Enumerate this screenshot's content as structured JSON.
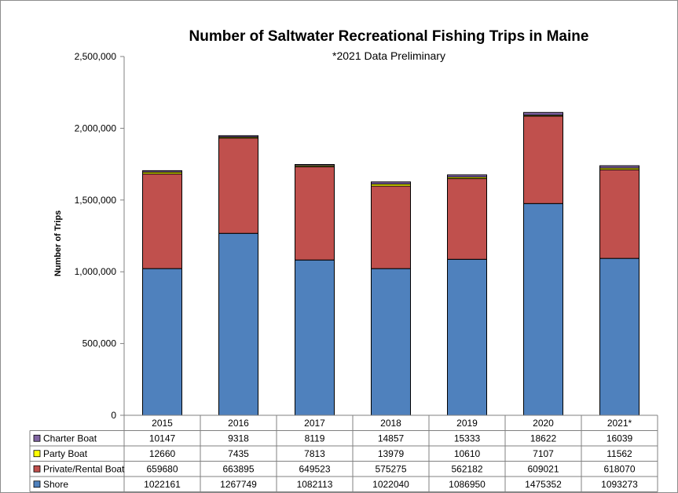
{
  "chart_data": {
    "type": "bar",
    "stacked": true,
    "title": "Number of Saltwater Recreational Fishing Trips in Maine",
    "subtitle": "*2021 Data Preliminary",
    "ylabel": "Number of Trips",
    "xlabel": "",
    "ylim": [
      0,
      2500000
    ],
    "yticks": [
      "0",
      "500,000",
      "1,000,000",
      "1,500,000",
      "2,000,000",
      "2,500,000"
    ],
    "ytick_values": [
      0,
      500000,
      1000000,
      1500000,
      2000000,
      2500000
    ],
    "categories": [
      "2015",
      "2016",
      "2017",
      "2018",
      "2019",
      "2020",
      "2021*"
    ],
    "grid": false,
    "legend": "data table rows below plot",
    "series": [
      {
        "name": "Shore",
        "color": "#4f81bd",
        "values": [
          1022161,
          1267749,
          1082113,
          1022040,
          1086950,
          1475352,
          1093273
        ]
      },
      {
        "name": "Private/Rental Boat",
        "color": "#c0504d",
        "values": [
          659680,
          663895,
          649523,
          575275,
          562182,
          609021,
          618070
        ]
      },
      {
        "name": "Party Boat",
        "color": "#ffff00",
        "values": [
          12660,
          7435,
          7813,
          13979,
          10610,
          7107,
          11562
        ]
      },
      {
        "name": "Charter Boat",
        "color": "#8064a2",
        "values": [
          10147,
          9318,
          8119,
          14857,
          15333,
          18622,
          16039
        ]
      }
    ],
    "table_rows": [
      {
        "label": "Charter Boat",
        "color": "#8064a2",
        "values": [
          "10147",
          "9318",
          "8119",
          "14857",
          "15333",
          "18622",
          "16039"
        ]
      },
      {
        "label": "Party Boat",
        "color": "#ffff00",
        "values": [
          "12660",
          "7435",
          "7813",
          "13979",
          "10610",
          "7107",
          "11562"
        ]
      },
      {
        "label": "Private/Rental Boat",
        "color": "#c0504d",
        "values": [
          "659680",
          "663895",
          "649523",
          "575275",
          "562182",
          "609021",
          "618070"
        ]
      },
      {
        "label": "Shore",
        "color": "#4f81bd",
        "values": [
          "1022161",
          "1267749",
          "1082113",
          "1022040",
          "1086950",
          "1475352",
          "1093273"
        ]
      }
    ]
  }
}
